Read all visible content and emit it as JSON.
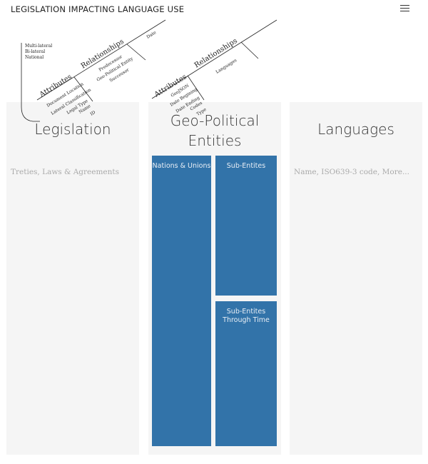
{
  "app": {
    "title": "LEGISLATION IMPACTING LANGUAGE USE"
  },
  "header": {
    "menu_icon": "hamburger-menu-icon"
  },
  "diagram_legislation": {
    "scope_types": [
      "Multi-lateral",
      "Bi-lateral",
      "National"
    ],
    "attributes_label": "Attributes",
    "attributes": [
      "Document Location",
      "Lateral Classification",
      "Legal Type",
      "Name",
      "ID"
    ],
    "relationships_label": "Relationships",
    "relationships": [
      "Predecessor",
      "Geo-Political Entity",
      "Successor"
    ],
    "extra": "Date"
  },
  "diagram_geo": {
    "attributes_label": "Attributes",
    "attributes": [
      "GeoJSON",
      "Date Begining",
      "Date Ending",
      "Codes",
      "Type"
    ],
    "relationships_label": "Relationships",
    "relationships": [
      "Languages"
    ]
  },
  "panels": {
    "legislation": {
      "title": "Legislation",
      "description": "Treties, Laws & Agreements"
    },
    "geo": {
      "title_line1": "Geo-Political",
      "title_line2": "Entities",
      "tiles": {
        "nations": "Nations & Unions",
        "sub": "Sub-Entites",
        "sub_through_1": "Sub-Entites",
        "sub_through_2": "Through Time"
      }
    },
    "languages": {
      "title": "Languages",
      "description": "Name, ISO639-3 code, More..."
    }
  },
  "colors": {
    "tile": "#3273a9",
    "panel": "#f5f5f5",
    "description_text": "#aaaaaa"
  }
}
